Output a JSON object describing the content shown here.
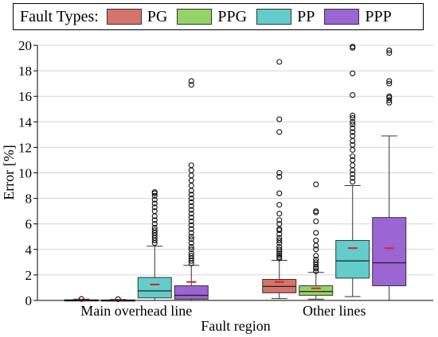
{
  "chart_data": {
    "type": "box",
    "legend_title": "Fault Types:",
    "legend_position": "top",
    "xlabel": "Fault region",
    "ylabel": "Error [%]",
    "ylim": [
      0,
      20
    ],
    "yticks": [
      0,
      2,
      4,
      6,
      8,
      10,
      12,
      14,
      16,
      18,
      20
    ],
    "grid": true,
    "categories": [
      "Main overhead line",
      "Other lines"
    ],
    "series": [
      {
        "name": "PG",
        "color": "#d4746b",
        "boxes": [
          {
            "whislo": 0.0,
            "q1": 0.0,
            "med": 0.02,
            "q3": 0.05,
            "whishi": 0.1,
            "mean": 0.03,
            "fliers": [
              0.12
            ]
          },
          {
            "whislo": 0.15,
            "q1": 0.6,
            "med": 1.1,
            "q3": 1.65,
            "whishi": 3.15,
            "mean": 1.45,
            "fliers": [
              3.3,
              3.4,
              3.55,
              3.7,
              3.85,
              4.0,
              4.2,
              4.5,
              4.7,
              4.9,
              5.2,
              5.5,
              5.6,
              6.0,
              6.3,
              6.8,
              7.5,
              8.4,
              9.7,
              10.0,
              13.2,
              14.2,
              18.7
            ]
          }
        ]
      },
      {
        "name": "PPG",
        "color": "#94d466",
        "boxes": [
          {
            "whislo": 0.0,
            "q1": 0.0,
            "med": 0.01,
            "q3": 0.04,
            "whishi": 0.08,
            "mean": 0.02,
            "fliers": [
              0.1
            ]
          },
          {
            "whislo": 0.1,
            "q1": 0.4,
            "med": 0.7,
            "q3": 1.15,
            "whishi": 2.2,
            "mean": 0.95,
            "fliers": [
              2.3,
              2.5,
              2.6,
              2.8,
              3.0,
              3.2,
              3.5,
              4.0,
              4.3,
              4.7,
              5.3,
              6.2,
              6.9,
              7.0,
              9.1
            ]
          }
        ]
      },
      {
        "name": "PP",
        "color": "#63cdcc",
        "boxes": [
          {
            "whislo": 0.0,
            "q1": 0.2,
            "med": 0.75,
            "q3": 1.8,
            "whishi": 4.25,
            "mean": 1.25,
            "fliers": [
              4.5,
              4.7,
              4.9,
              5.1,
              5.3,
              5.5,
              5.7,
              6.0,
              6.3,
              6.6,
              7.0,
              7.3,
              7.6,
              7.9,
              8.2,
              8.4,
              8.5
            ]
          },
          {
            "whislo": 0.3,
            "q1": 1.75,
            "med": 3.1,
            "q3": 4.7,
            "whishi": 9.0,
            "mean": 4.1,
            "fliers": [
              9.3,
              9.6,
              9.9,
              10.2,
              10.6,
              11.0,
              11.3,
              11.8,
              12.2,
              12.5,
              12.9,
              13.2,
              13.5,
              13.8,
              14.0,
              14.3,
              14.5,
              16.1,
              17.8,
              19.8,
              19.9
            ]
          }
        ]
      },
      {
        "name": "PPP",
        "color": "#9b65d4",
        "boxes": [
          {
            "whislo": 0.0,
            "q1": 0.1,
            "med": 0.4,
            "q3": 1.15,
            "whishi": 2.75,
            "mean": 1.45,
            "fliers": [
              2.9,
              3.1,
              3.3,
              3.5,
              3.7,
              4.0,
              4.2,
              4.5,
              4.8,
              5.0,
              5.3,
              5.6,
              5.9,
              6.2,
              6.5,
              6.8,
              7.1,
              7.4,
              7.7,
              8.0,
              8.3,
              8.6,
              9.0,
              9.4,
              9.8,
              10.2,
              10.6,
              16.9,
              17.2
            ]
          },
          {
            "whislo": 0.0,
            "q1": 1.15,
            "med": 2.95,
            "q3": 6.5,
            "whishi": 12.9,
            "mean": 4.1,
            "fliers": [
              15.5,
              15.7,
              15.9,
              16.0,
              17.0,
              17.2,
              19.4,
              19.6
            ]
          }
        ]
      }
    ]
  }
}
